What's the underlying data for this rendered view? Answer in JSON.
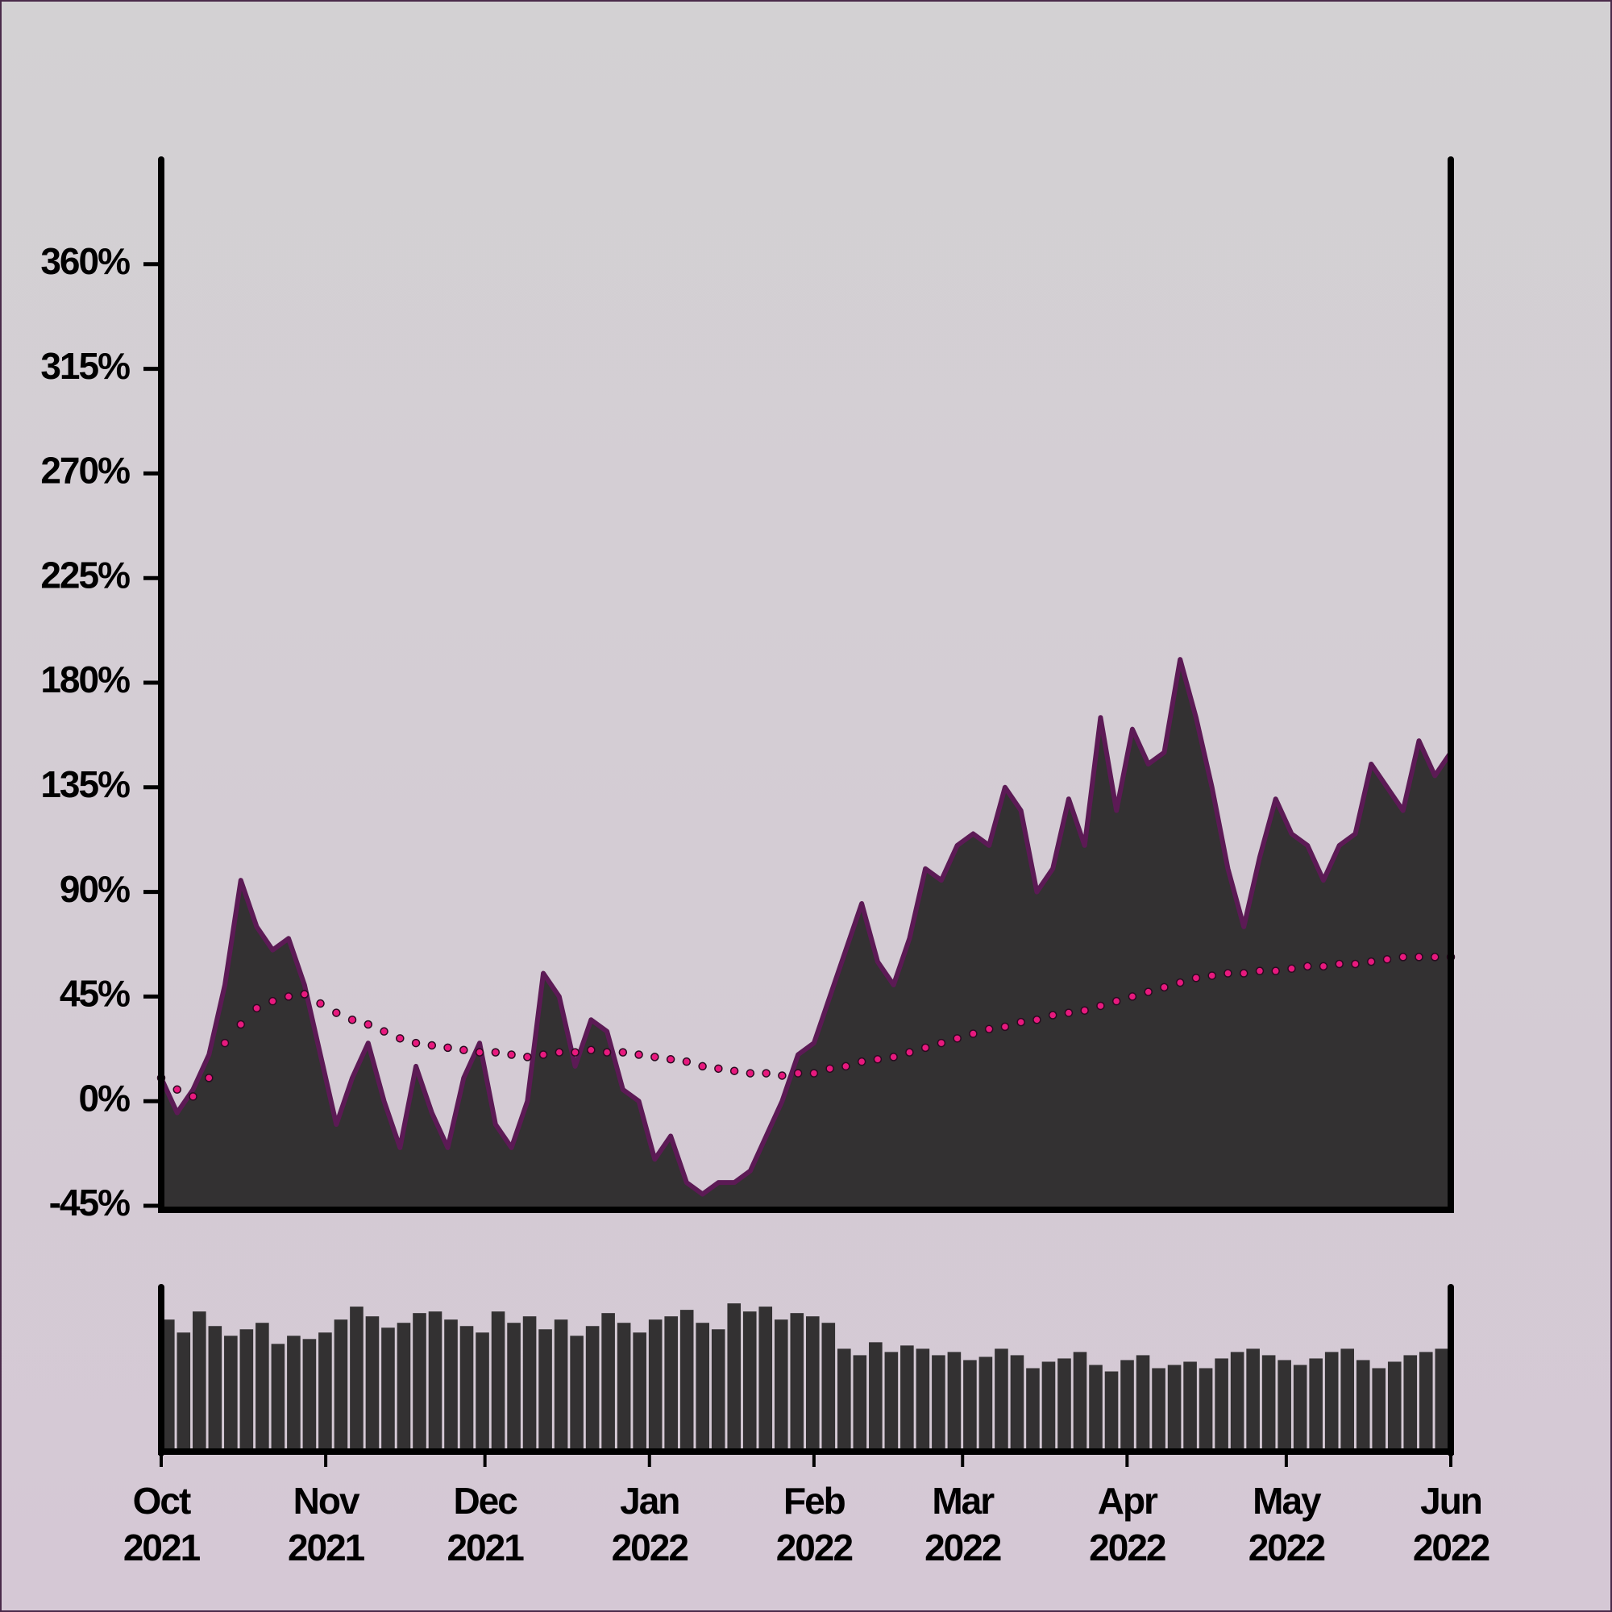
{
  "chart_data": [
    {
      "type": "area",
      "xlim": [
        "2021-10",
        "2022-06"
      ],
      "ylim": [
        -45,
        405
      ],
      "yticks": [
        {
          "value": -45,
          "label": "-45%"
        },
        {
          "value": 0,
          "label": "0%"
        },
        {
          "value": 45,
          "label": "45%"
        },
        {
          "value": 90,
          "label": "90%"
        },
        {
          "value": 135,
          "label": "135%"
        },
        {
          "value": 180,
          "label": "180%"
        },
        {
          "value": 225,
          "label": "225%"
        },
        {
          "value": 270,
          "label": "270%"
        },
        {
          "value": 315,
          "label": "315%"
        },
        {
          "value": 360,
          "label": "360%"
        }
      ],
      "series": [
        {
          "style": "area",
          "color": "#5c1a55",
          "fill": "#333132",
          "values": [
            10,
            -5,
            5,
            20,
            50,
            95,
            75,
            65,
            70,
            50,
            20,
            -10,
            10,
            25,
            0,
            -20,
            15,
            -5,
            -20,
            10,
            25,
            -10,
            -20,
            0,
            55,
            45,
            15,
            35,
            30,
            5,
            0,
            -25,
            -15,
            -35,
            -40,
            -35,
            -35,
            -30,
            -15,
            0,
            20,
            25,
            45,
            65,
            85,
            60,
            50,
            70,
            100,
            95,
            110,
            115,
            110,
            135,
            125,
            90,
            100,
            130,
            110,
            165,
            125,
            160,
            145,
            150,
            190,
            165,
            135,
            100,
            75,
            105,
            130,
            115,
            110,
            95,
            110,
            115,
            145,
            135,
            125,
            155,
            140,
            150
          ]
        },
        {
          "style": "dots",
          "color": "#e8197e",
          "values": [
            10,
            5,
            2,
            10,
            25,
            33,
            40,
            43,
            45,
            46,
            42,
            38,
            35,
            33,
            30,
            27,
            25,
            24,
            23,
            22,
            21,
            21,
            20,
            19,
            20,
            21,
            21,
            22,
            21,
            21,
            20,
            19,
            18,
            17,
            15,
            14,
            13,
            12,
            12,
            11,
            12,
            12,
            14,
            15,
            17,
            18,
            19,
            21,
            23,
            25,
            27,
            29,
            31,
            32,
            34,
            35,
            37,
            38,
            39,
            41,
            43,
            45,
            47,
            49,
            51,
            53,
            54,
            55,
            55,
            56,
            56,
            57,
            58,
            58,
            59,
            59,
            60,
            61,
            62,
            62,
            62,
            62
          ]
        }
      ]
    },
    {
      "type": "bar",
      "xlim": [
        "2021-10",
        "2022-06"
      ],
      "ylim": [
        0,
        100
      ],
      "color": "#333132",
      "xticks": [
        {
          "value": "2021-10",
          "label": "Oct 2021"
        },
        {
          "value": "2021-11",
          "label": "Nov 2021"
        },
        {
          "value": "2021-12",
          "label": "Dec 2021"
        },
        {
          "value": "2022-01",
          "label": "Jan 2022"
        },
        {
          "value": "2022-02",
          "label": "Feb 2022"
        },
        {
          "value": "2022-03",
          "label": "Mar 2022"
        },
        {
          "value": "2022-04",
          "label": "Apr 2022"
        },
        {
          "value": "2022-05",
          "label": "May 2022"
        },
        {
          "value": "2022-06",
          "label": "Jun 2022"
        }
      ],
      "values": [
        80,
        72,
        85,
        76,
        70,
        74,
        78,
        65,
        70,
        68,
        72,
        80,
        88,
        82,
        75,
        78,
        84,
        85,
        80,
        76,
        72,
        85,
        78,
        82,
        74,
        80,
        70,
        76,
        84,
        78,
        72,
        80,
        82,
        86,
        78,
        74,
        90,
        85,
        88,
        80,
        84,
        82,
        78,
        62,
        58,
        66,
        60,
        64,
        62,
        58,
        60,
        55,
        57,
        62,
        58,
        50,
        54,
        56,
        60,
        52,
        48,
        55,
        58,
        50,
        52,
        54,
        50,
        56,
        60,
        62,
        58,
        55,
        52,
        56,
        60,
        62,
        55,
        50,
        54,
        58,
        60,
        62
      ]
    }
  ]
}
